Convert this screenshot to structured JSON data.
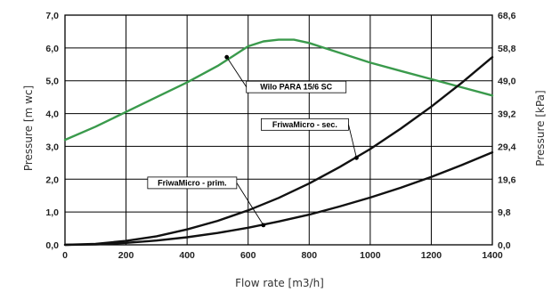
{
  "chart_data": {
    "type": "line",
    "xlabel": "Flow rate [m3/h]",
    "ylabel": "Pressure [m wc]",
    "ylabel_right": "Pressure [kPa]",
    "xlim": [
      0,
      1400
    ],
    "ylim": [
      0,
      7
    ],
    "x_ticks": [
      0,
      200,
      400,
      600,
      800,
      1000,
      1200,
      1400
    ],
    "x_tick_labels": [
      "0",
      "200",
      "400",
      "600",
      "800",
      "1000",
      "1200",
      "1400"
    ],
    "y_ticks": [
      0,
      1,
      2,
      3,
      4,
      5,
      6,
      7
    ],
    "y_tick_labels": [
      "0,0",
      "1,0",
      "2,0",
      "3,0",
      "4,0",
      "5,0",
      "6,0",
      "7,0"
    ],
    "y_right_ticks": [
      0,
      9.8,
      19.6,
      29.4,
      39.2,
      49,
      58.8,
      68.6
    ],
    "y_right_tick_labels": [
      "0,0",
      "9,8",
      "19,6",
      "29,4",
      "39,2",
      "49,0",
      "58,8",
      "68,6"
    ],
    "grid": true,
    "series": [
      {
        "name": "Wilo PARA 15/6 SC",
        "color": "#3a9a4c",
        "x": [
          0,
          100,
          200,
          300,
          400,
          500,
          550,
          600,
          650,
          700,
          750,
          800,
          850,
          900,
          1000,
          1100,
          1200,
          1300,
          1400
        ],
        "y": [
          3.2,
          3.6,
          4.05,
          4.5,
          4.95,
          5.45,
          5.75,
          6.05,
          6.2,
          6.25,
          6.25,
          6.15,
          6.0,
          5.85,
          5.55,
          5.3,
          5.05,
          4.8,
          4.55
        ]
      },
      {
        "name": "FriwaMicro - sec.",
        "color": "#111111",
        "x": [
          0,
          100,
          200,
          300,
          400,
          500,
          600,
          700,
          800,
          900,
          1000,
          1100,
          1200,
          1300,
          1400
        ],
        "y": [
          0,
          0.03,
          0.12,
          0.26,
          0.47,
          0.73,
          1.05,
          1.43,
          1.87,
          2.37,
          2.92,
          3.54,
          4.21,
          4.94,
          5.72
        ]
      },
      {
        "name": "FriwaMicro - prim.",
        "color": "#111111",
        "x": [
          0,
          100,
          200,
          300,
          400,
          500,
          600,
          700,
          800,
          900,
          1000,
          1100,
          1200,
          1300,
          1400
        ],
        "y": [
          0,
          0.01,
          0.06,
          0.13,
          0.23,
          0.36,
          0.52,
          0.71,
          0.92,
          1.17,
          1.44,
          1.74,
          2.07,
          2.43,
          2.82
        ]
      }
    ],
    "annotations": [
      {
        "text": "Wilo PARA 15/6 SC",
        "series": 0,
        "x": 530,
        "y": 5.72
      },
      {
        "text": "FriwaMicro - sec.",
        "series": 1,
        "x": 955,
        "y": 2.65
      },
      {
        "text": "FriwaMicro - prim.",
        "series": 2,
        "x": 650,
        "y": 0.6
      }
    ]
  }
}
